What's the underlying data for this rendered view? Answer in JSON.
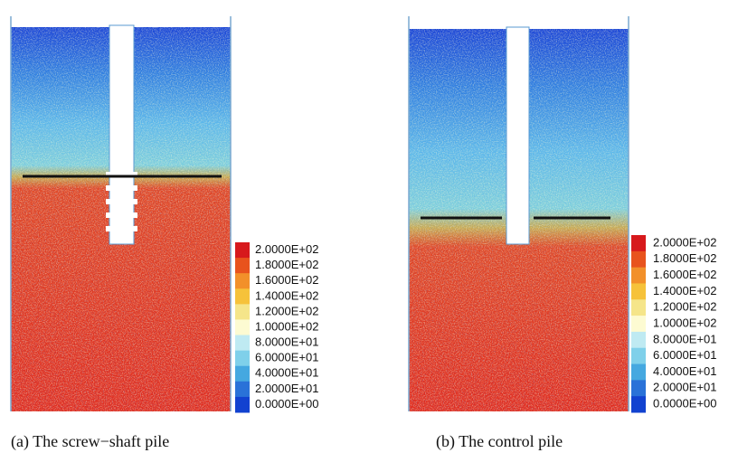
{
  "panels": [
    {
      "caption": "(a) The screw−shaft pile",
      "legend": [
        "2.0000E+02",
        "1.8000E+02",
        "1.6000E+02",
        "1.4000E+02",
        "1.2000E+02",
        "1.0000E+02",
        "8.0000E+01",
        "6.0000E+01",
        "4.0000E+01",
        "2.0000E+01",
        "0.0000E+00"
      ]
    },
    {
      "caption": "(b) The control pile",
      "legend": [
        "2.0000E+02",
        "1.8000E+02",
        "1.6000E+02",
        "1.4000E+02",
        "1.2000E+02",
        "1.0000E+02",
        "8.0000E+01",
        "6.0000E+01",
        "4.0000E+01",
        "2.0000E+01",
        "0.0000E+00"
      ]
    }
  ]
}
